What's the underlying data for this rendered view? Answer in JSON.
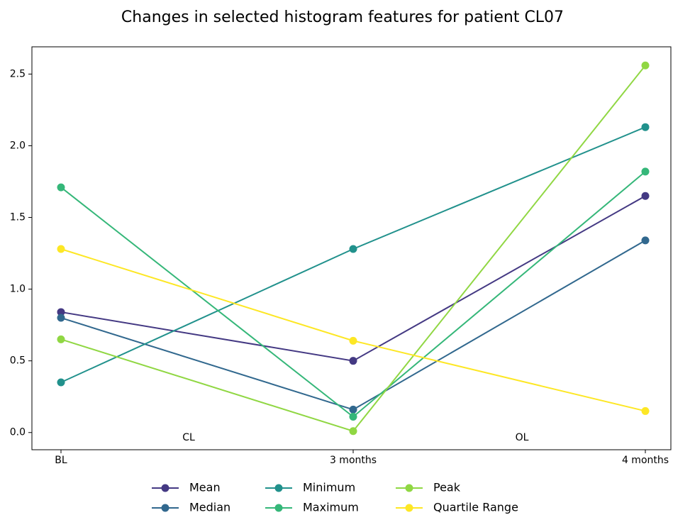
{
  "chart_data": {
    "type": "line",
    "title": "Changes in selected histogram features for patient CL07",
    "categories": [
      "BL",
      "3 months",
      "4 months"
    ],
    "series": [
      {
        "name": "Mean",
        "color": "#443983",
        "values": [
          0.84,
          0.5,
          1.65
        ]
      },
      {
        "name": "Median",
        "color": "#31688e",
        "values": [
          0.8,
          0.16,
          1.34
        ]
      },
      {
        "name": "Minimum",
        "color": "#21918c",
        "values": [
          0.35,
          1.28,
          2.13
        ]
      },
      {
        "name": "Maximum",
        "color": "#35b779",
        "values": [
          1.71,
          0.11,
          1.82
        ]
      },
      {
        "name": "Peak",
        "color": "#90d743",
        "values": [
          0.65,
          0.01,
          2.56
        ]
      },
      {
        "name": "Quartile Range",
        "color": "#fde725",
        "values": [
          1.28,
          0.64,
          0.15
        ]
      }
    ],
    "annotations": [
      "CL",
      "OL"
    ],
    "ylim": [
      -0.12,
      2.69
    ],
    "yticks": [
      {
        "value": 0,
        "label": "0.0"
      },
      0.5,
      {
        "value": 1,
        "label": "1.0"
      },
      1.5,
      {
        "value": 2,
        "label": "2.0"
      },
      2.5
    ],
    "legend": "bottom"
  }
}
